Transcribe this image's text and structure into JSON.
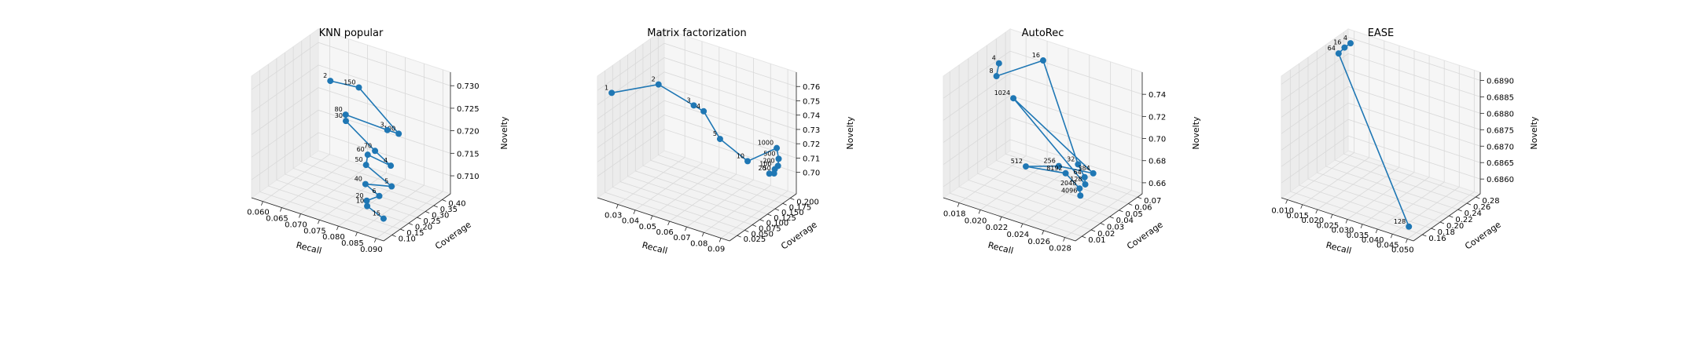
{
  "chart_data": [
    {
      "type": "line3d",
      "title": "KNN popular",
      "xlabel": "Recall",
      "ylabel": "Coverage",
      "zlabel": "Novelty",
      "xlim": [
        0.057,
        0.092
      ],
      "ylim": [
        0.05,
        0.45
      ],
      "zlim": [
        0.706,
        0.733
      ],
      "xticks": [
        "0.060",
        "0.065",
        "0.070",
        "0.075",
        "0.080",
        "0.085",
        "0.090"
      ],
      "xtick_values": [
        0.06,
        0.065,
        0.07,
        0.075,
        0.08,
        0.085,
        0.09
      ],
      "yticks": [
        "0.10",
        "0.15",
        "0.20",
        "0.25",
        "0.30",
        "0.35",
        "0.40"
      ],
      "ytick_values": [
        0.1,
        0.15,
        0.2,
        0.25,
        0.3,
        0.35,
        0.4
      ],
      "zticks": [
        "0.710",
        "0.715",
        "0.720",
        "0.725",
        "0.730"
      ],
      "ztick_values": [
        0.71,
        0.715,
        0.72,
        0.725,
        0.73
      ],
      "points": [
        {
          "label": "2",
          "x": 0.0615,
          "y": 0.42,
          "z": 0.7235
        },
        {
          "label": "150",
          "x": 0.0695,
          "y": 0.41,
          "z": 0.7245
        },
        {
          "label": "100",
          "x": 0.0805,
          "y": 0.4,
          "z": 0.7175
        },
        {
          "label": "3",
          "x": 0.0775,
          "y": 0.4,
          "z": 0.7175
        },
        {
          "label": "80",
          "x": 0.066,
          "y": 0.41,
          "z": 0.7175
        },
        {
          "label": "30",
          "x": 0.0665,
          "y": 0.4,
          "z": 0.7165
        },
        {
          "label": "70",
          "x": 0.076,
          "y": 0.36,
          "z": 0.7135
        },
        {
          "label": "4",
          "x": 0.0815,
          "y": 0.33,
          "z": 0.7125
        },
        {
          "label": "60",
          "x": 0.0745,
          "y": 0.35,
          "z": 0.7125
        },
        {
          "label": "50",
          "x": 0.0745,
          "y": 0.34,
          "z": 0.7105
        },
        {
          "label": "5",
          "x": 0.0835,
          "y": 0.29,
          "z": 0.7095
        },
        {
          "label": "40",
          "x": 0.077,
          "y": 0.28,
          "z": 0.7085
        },
        {
          "label": "6",
          "x": 0.082,
          "y": 0.25,
          "z": 0.708
        },
        {
          "label": "20",
          "x": 0.08,
          "y": 0.22,
          "z": 0.7072
        },
        {
          "label": "10",
          "x": 0.081,
          "y": 0.2,
          "z": 0.7068
        },
        {
          "label": "15",
          "x": 0.088,
          "y": 0.14,
          "z": 0.7075
        }
      ]
    },
    {
      "type": "line3d",
      "title": "Matrix factorization",
      "xlabel": "Recall",
      "ylabel": "Coverage",
      "zlabel": "Novelty",
      "xlim": [
        0.018,
        0.095
      ],
      "ylim": [
        0.0,
        0.22
      ],
      "zlim": [
        0.685,
        0.77
      ],
      "xticks": [
        "0.03",
        "0.04",
        "0.05",
        "0.06",
        "0.07",
        "0.08",
        "0.09"
      ],
      "xtick_values": [
        0.03,
        0.04,
        0.05,
        0.06,
        0.07,
        0.08,
        0.09
      ],
      "yticks": [
        "0.025",
        "0.050",
        "0.075",
        "0.100",
        "0.125",
        "0.150",
        "0.175",
        "0.200"
      ],
      "ytick_values": [
        0.025,
        0.05,
        0.075,
        0.1,
        0.125,
        0.15,
        0.175,
        0.2
      ],
      "zticks": [
        "0.70",
        "0.71",
        "0.72",
        "0.73",
        "0.74",
        "0.75",
        "0.76"
      ],
      "ztick_values": [
        0.7,
        0.71,
        0.72,
        0.73,
        0.74,
        0.75,
        0.76
      ],
      "points": [
        {
          "label": "1",
          "x": 0.021,
          "y": 0.03,
          "z": 0.755
        },
        {
          "label": "2",
          "x": 0.043,
          "y": 0.06,
          "z": 0.765
        },
        {
          "label": "3",
          "x": 0.06,
          "y": 0.08,
          "z": 0.754
        },
        {
          "label": "4",
          "x": 0.064,
          "y": 0.09,
          "z": 0.75
        },
        {
          "label": "5",
          "x": 0.07,
          "y": 0.11,
          "z": 0.73
        },
        {
          "label": "10",
          "x": 0.079,
          "y": 0.15,
          "z": 0.712
        },
        {
          "label": "1000",
          "x": 0.088,
          "y": 0.195,
          "z": 0.718
        },
        {
          "label": "500",
          "x": 0.09,
          "y": 0.19,
          "z": 0.712
        },
        {
          "label": "200",
          "x": 0.0905,
          "y": 0.185,
          "z": 0.708
        },
        {
          "label": "100",
          "x": 0.0895,
          "y": 0.18,
          "z": 0.706
        },
        {
          "label": "50",
          "x": 0.09,
          "y": 0.175,
          "z": 0.704
        },
        {
          "label": "20",
          "x": 0.089,
          "y": 0.165,
          "z": 0.705
        }
      ]
    },
    {
      "type": "line3d",
      "title": "AutoRec",
      "xlabel": "Recall",
      "ylabel": "Coverage",
      "zlabel": "Novelty",
      "xlim": [
        0.0165,
        0.029
      ],
      "ylim": [
        0.003,
        0.075
      ],
      "zlim": [
        0.65,
        0.76
      ],
      "xticks": [
        "0.018",
        "0.020",
        "0.022",
        "0.024",
        "0.026",
        "0.028"
      ],
      "xtick_values": [
        0.018,
        0.02,
        0.022,
        0.024,
        0.026,
        0.028
      ],
      "yticks": [
        "0.01",
        "0.02",
        "0.03",
        "0.04",
        "0.05",
        "0.06",
        "0.07"
      ],
      "ytick_values": [
        0.01,
        0.02,
        0.03,
        0.04,
        0.05,
        0.06,
        0.07
      ],
      "zticks": [
        "0.66",
        "0.68",
        "0.70",
        "0.72",
        "0.74"
      ],
      "ztick_values": [
        0.66,
        0.68,
        0.7,
        0.72,
        0.74
      ],
      "points": [
        {
          "label": "4",
          "x": 0.0172,
          "y": 0.055,
          "z": 0.743
        },
        {
          "label": "8",
          "x": 0.0174,
          "y": 0.05,
          "z": 0.735
        },
        {
          "label": "16",
          "x": 0.0205,
          "y": 0.065,
          "z": 0.75
        },
        {
          "label": "32",
          "x": 0.026,
          "y": 0.04,
          "z": 0.688
        },
        {
          "label": "64",
          "x": 0.0275,
          "y": 0.03,
          "z": 0.687
        },
        {
          "label": "128",
          "x": 0.028,
          "y": 0.025,
          "z": 0.685
        },
        {
          "label": "1024",
          "x": 0.019,
          "y": 0.05,
          "z": 0.72
        },
        {
          "label": "384",
          "x": 0.027,
          "y": 0.045,
          "z": 0.68
        },
        {
          "label": "256",
          "x": 0.024,
          "y": 0.042,
          "z": 0.679
        },
        {
          "label": "512",
          "x": 0.0215,
          "y": 0.035,
          "z": 0.675
        },
        {
          "label": "8192",
          "x": 0.025,
          "y": 0.038,
          "z": 0.678
        },
        {
          "label": "2048",
          "x": 0.0272,
          "y": 0.028,
          "z": 0.677
        },
        {
          "label": "4096",
          "x": 0.0278,
          "y": 0.022,
          "z": 0.676
        }
      ]
    },
    {
      "type": "line3d",
      "title": "EASE",
      "xlabel": "Recall",
      "ylabel": "Coverage",
      "zlabel": "Novelty",
      "xlim": [
        0.008,
        0.052
      ],
      "ylim": [
        0.14,
        0.29
      ],
      "zlim": [
        0.68555,
        0.68925
      ],
      "xticks": [
        "0.010",
        "0.015",
        "0.020",
        "0.025",
        "0.030",
        "0.035",
        "0.040",
        "0.045",
        "0.050"
      ],
      "xtick_values": [
        0.01,
        0.015,
        0.02,
        0.025,
        0.03,
        0.035,
        0.04,
        0.045,
        0.05
      ],
      "yticks": [
        "0.16",
        "0.18",
        "0.20",
        "0.22",
        "0.24",
        "0.26",
        "0.28"
      ],
      "ytick_values": [
        0.16,
        0.18,
        0.2,
        0.22,
        0.24,
        0.26,
        0.28
      ],
      "zticks": [
        "0.6860",
        "0.6865",
        "0.6870",
        "0.6875",
        "0.6880",
        "0.6885",
        "0.6890"
      ],
      "ztick_values": [
        0.686,
        0.6865,
        0.687,
        0.6875,
        0.688,
        0.6885,
        0.689
      ],
      "points": [
        {
          "label": "4",
          "x": 0.011,
          "y": 0.275,
          "z": 0.68905
        },
        {
          "label": "16",
          "x": 0.0105,
          "y": 0.265,
          "z": 0.689
        },
        {
          "label": "64",
          "x": 0.01,
          "y": 0.255,
          "z": 0.6889
        },
        {
          "label": "128",
          "x": 0.049,
          "y": 0.15,
          "z": 0.6858
        }
      ]
    }
  ]
}
